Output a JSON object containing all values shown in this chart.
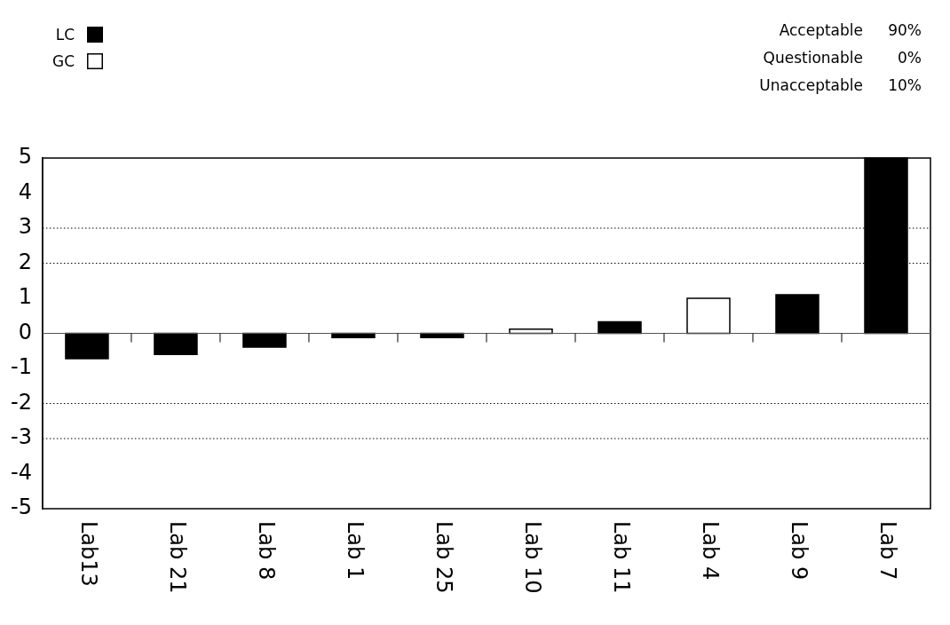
{
  "chart_data": {
    "type": "bar",
    "categories": [
      "Lab13",
      "Lab 21",
      "Lab 8",
      "Lab 1",
      "Lab 25",
      "Lab 10",
      "Lab 11",
      "Lab 4",
      "Lab 9",
      "Lab 7"
    ],
    "series": [
      {
        "name": "LC",
        "color": "#000000",
        "values": [
          -0.72,
          -0.6,
          -0.39,
          -0.12,
          -0.12,
          null,
          0.33,
          null,
          1.1,
          5
        ]
      },
      {
        "name": "GC",
        "color": "#ffffff",
        "values": [
          null,
          null,
          null,
          null,
          null,
          0.12,
          null,
          1,
          null,
          null
        ]
      }
    ],
    "ylim": [
      -5,
      5
    ],
    "yticks": [
      -5,
      -4,
      -3,
      -2,
      -1,
      0,
      1,
      2,
      3,
      4,
      5
    ],
    "grid": false,
    "legend": "top left",
    "ref_lines": [
      {
        "axis": "y",
        "value": 3,
        "line_style": "dotted"
      },
      {
        "axis": "y",
        "value": 2,
        "line_style": "dotted"
      },
      {
        "axis": "y",
        "value": -2,
        "line_style": "dotted"
      },
      {
        "axis": "y",
        "value": -3,
        "line_style": "dotted"
      }
    ],
    "annotations": [
      "Acceptable 90%",
      "Questionable 0%",
      "Unacceptable 10%"
    ]
  }
}
